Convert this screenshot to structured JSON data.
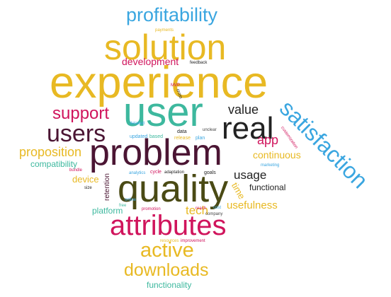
{
  "colors": {
    "gold": "#e8b923",
    "blue": "#3aa6e0",
    "teal": "#3db89e",
    "crimson": "#d0145c",
    "maroon": "#4b1533",
    "olive": "#4a4a14",
    "dark": "#222222",
    "gray": "#444444"
  },
  "words": [
    {
      "text": "profitability"
    },
    {
      "text": "payments"
    },
    {
      "text": "solution"
    },
    {
      "text": "feedback"
    },
    {
      "text": "development"
    },
    {
      "text": "experience"
    },
    {
      "text": "MVP"
    },
    {
      "text": "cross"
    },
    {
      "text": "user"
    },
    {
      "text": "support"
    },
    {
      "text": "value"
    },
    {
      "text": "satisfaction"
    },
    {
      "text": "real"
    },
    {
      "text": "users"
    },
    {
      "text": "detailed"
    },
    {
      "text": "data"
    },
    {
      "text": "unclear"
    },
    {
      "text": "updated"
    },
    {
      "text": "based"
    },
    {
      "text": "release"
    },
    {
      "text": "plan"
    },
    {
      "text": "customization"
    },
    {
      "text": "app"
    },
    {
      "text": "problem"
    },
    {
      "text": "proposition"
    },
    {
      "text": "continuous"
    },
    {
      "text": "compatibility"
    },
    {
      "text": "marketing"
    },
    {
      "text": "bundle"
    },
    {
      "text": "analytics"
    },
    {
      "text": "cycle"
    },
    {
      "text": "adaptation"
    },
    {
      "text": "goals"
    },
    {
      "text": "usage"
    },
    {
      "text": "device"
    },
    {
      "text": "retention"
    },
    {
      "text": "quality"
    },
    {
      "text": "size"
    },
    {
      "text": "time"
    },
    {
      "text": "functional"
    },
    {
      "text": "online"
    },
    {
      "text": "free"
    },
    {
      "text": "tech"
    },
    {
      "text": "usefulness"
    },
    {
      "text": "platform"
    },
    {
      "text": "promotion"
    },
    {
      "text": "reach"
    },
    {
      "text": "cost"
    },
    {
      "text": "company"
    },
    {
      "text": "attributes"
    },
    {
      "text": "resources"
    },
    {
      "text": "improvement"
    },
    {
      "text": "active"
    },
    {
      "text": "downloads"
    },
    {
      "text": "functionality"
    }
  ]
}
